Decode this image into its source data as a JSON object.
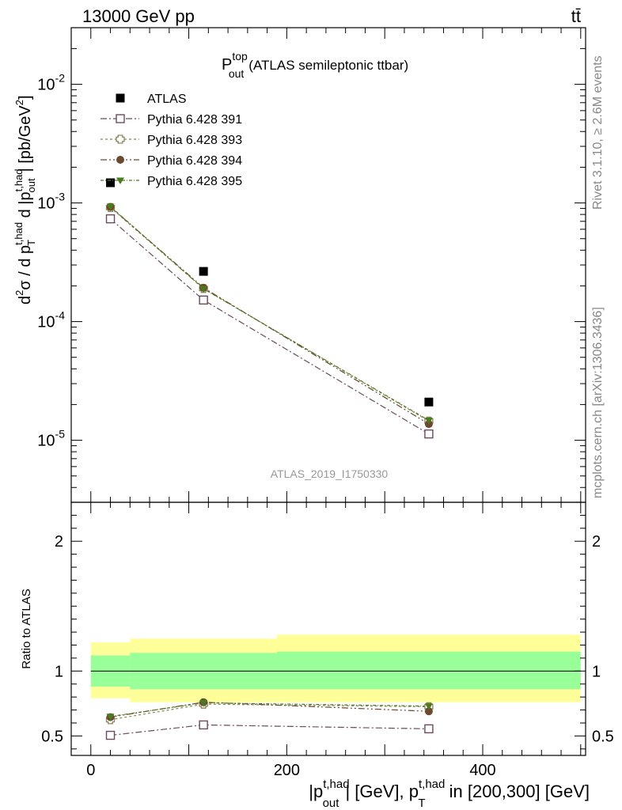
{
  "header": {
    "energy": "13000 GeV pp",
    "process": "tt̄"
  },
  "side_labels": {
    "rivet": "Rivet 3.1.10, ≥ 2.6M events",
    "mcplots": "mcplots.cern.ch [arXiv:1306.3436]"
  },
  "chart_data": [
    {
      "type": "scatter",
      "panel": "main",
      "title": {
        "main": "P",
        "sup": "top",
        "sub": "out",
        "rest": "(ATLAS semileptonic ttbar)"
      },
      "ylabel": "d²σ / d p_T^{t,had} d |p_out^{t,had}| [pb/GeV²]",
      "yscale": "log",
      "ylim": [
        3e-06,
        0.03
      ],
      "xlim": [
        -20,
        505
      ],
      "y_tick_labels": [
        "10",
        "10",
        "10",
        "10"
      ],
      "y_tick_exponents": [
        "-5",
        "-4",
        "-3",
        "-2"
      ],
      "watermark": "ATLAS_2019_I1750330",
      "legend_position": "top-left",
      "series": [
        {
          "name": "ATLAS",
          "x": [
            20,
            115,
            345
          ],
          "y": [
            0.00148,
            0.000265,
            2.1e-05
          ],
          "color": "#000000",
          "marker": "filled-square"
        },
        {
          "name": "Pythia 6.428 391",
          "x": [
            20,
            115,
            345
          ],
          "y": [
            0.000735,
            0.000152,
            1.13e-05
          ],
          "color": "#6b4a5e",
          "marker": "open-square"
        },
        {
          "name": "Pythia 6.428 393",
          "x": [
            20,
            115,
            345
          ],
          "y": [
            0.000915,
            0.00019,
            1.45e-05
          ],
          "color": "#8b8456",
          "marker": "open-cross"
        },
        {
          "name": "Pythia 6.428 394",
          "x": [
            20,
            115,
            345
          ],
          "y": [
            0.000925,
            0.000193,
            1.37e-05
          ],
          "color": "#6b4a30",
          "marker": "filled-circle"
        },
        {
          "name": "Pythia 6.428 395",
          "x": [
            20,
            115,
            345
          ],
          "y": [
            0.000935,
            0.000189,
            1.47e-05
          ],
          "color": "#4a7a1e",
          "marker": "filled-triangle-down"
        }
      ]
    },
    {
      "type": "scatter",
      "panel": "ratio",
      "ylabel": "Ratio to ATLAS",
      "ylim": [
        0.35,
        2.3
      ],
      "y_tick_labels": [
        "0.5",
        "1",
        "2"
      ],
      "y_tick_values": [
        0.5,
        1,
        2
      ],
      "xlabel": "|p_out^{t,had}| [GeV], p_T^{t,had} in [200,300] [GeV]",
      "x_tick_labels": [
        "0",
        "200",
        "400"
      ],
      "x_tick_values": [
        0,
        200,
        400
      ],
      "bands": [
        {
          "x0": 0,
          "x1": 40,
          "yellow": [
            0.79,
            1.22
          ],
          "green": [
            0.88,
            1.12
          ]
        },
        {
          "x0": 40,
          "x1": 190,
          "yellow": [
            0.76,
            1.25
          ],
          "green": [
            0.86,
            1.14
          ]
        },
        {
          "x0": 190,
          "x1": 500,
          "yellow": [
            0.76,
            1.28
          ],
          "green": [
            0.86,
            1.15
          ]
        }
      ],
      "series": [
        {
          "name": "Pythia 6.428 391",
          "x": [
            20,
            115,
            345
          ],
          "y": [
            0.505,
            0.585,
            0.555
          ]
        },
        {
          "name": "Pythia 6.428 393",
          "x": [
            20,
            115,
            345
          ],
          "y": [
            0.625,
            0.745,
            0.725
          ]
        },
        {
          "name": "Pythia 6.428 394",
          "x": [
            20,
            115,
            345
          ],
          "y": [
            0.645,
            0.76,
            0.69
          ]
        },
        {
          "name": "Pythia 6.428 395",
          "x": [
            20,
            115,
            345
          ],
          "y": [
            0.65,
            0.755,
            0.73
          ]
        }
      ],
      "colors": {
        "band_yellow": "#ffff99",
        "band_green": "#99ff99"
      }
    }
  ]
}
